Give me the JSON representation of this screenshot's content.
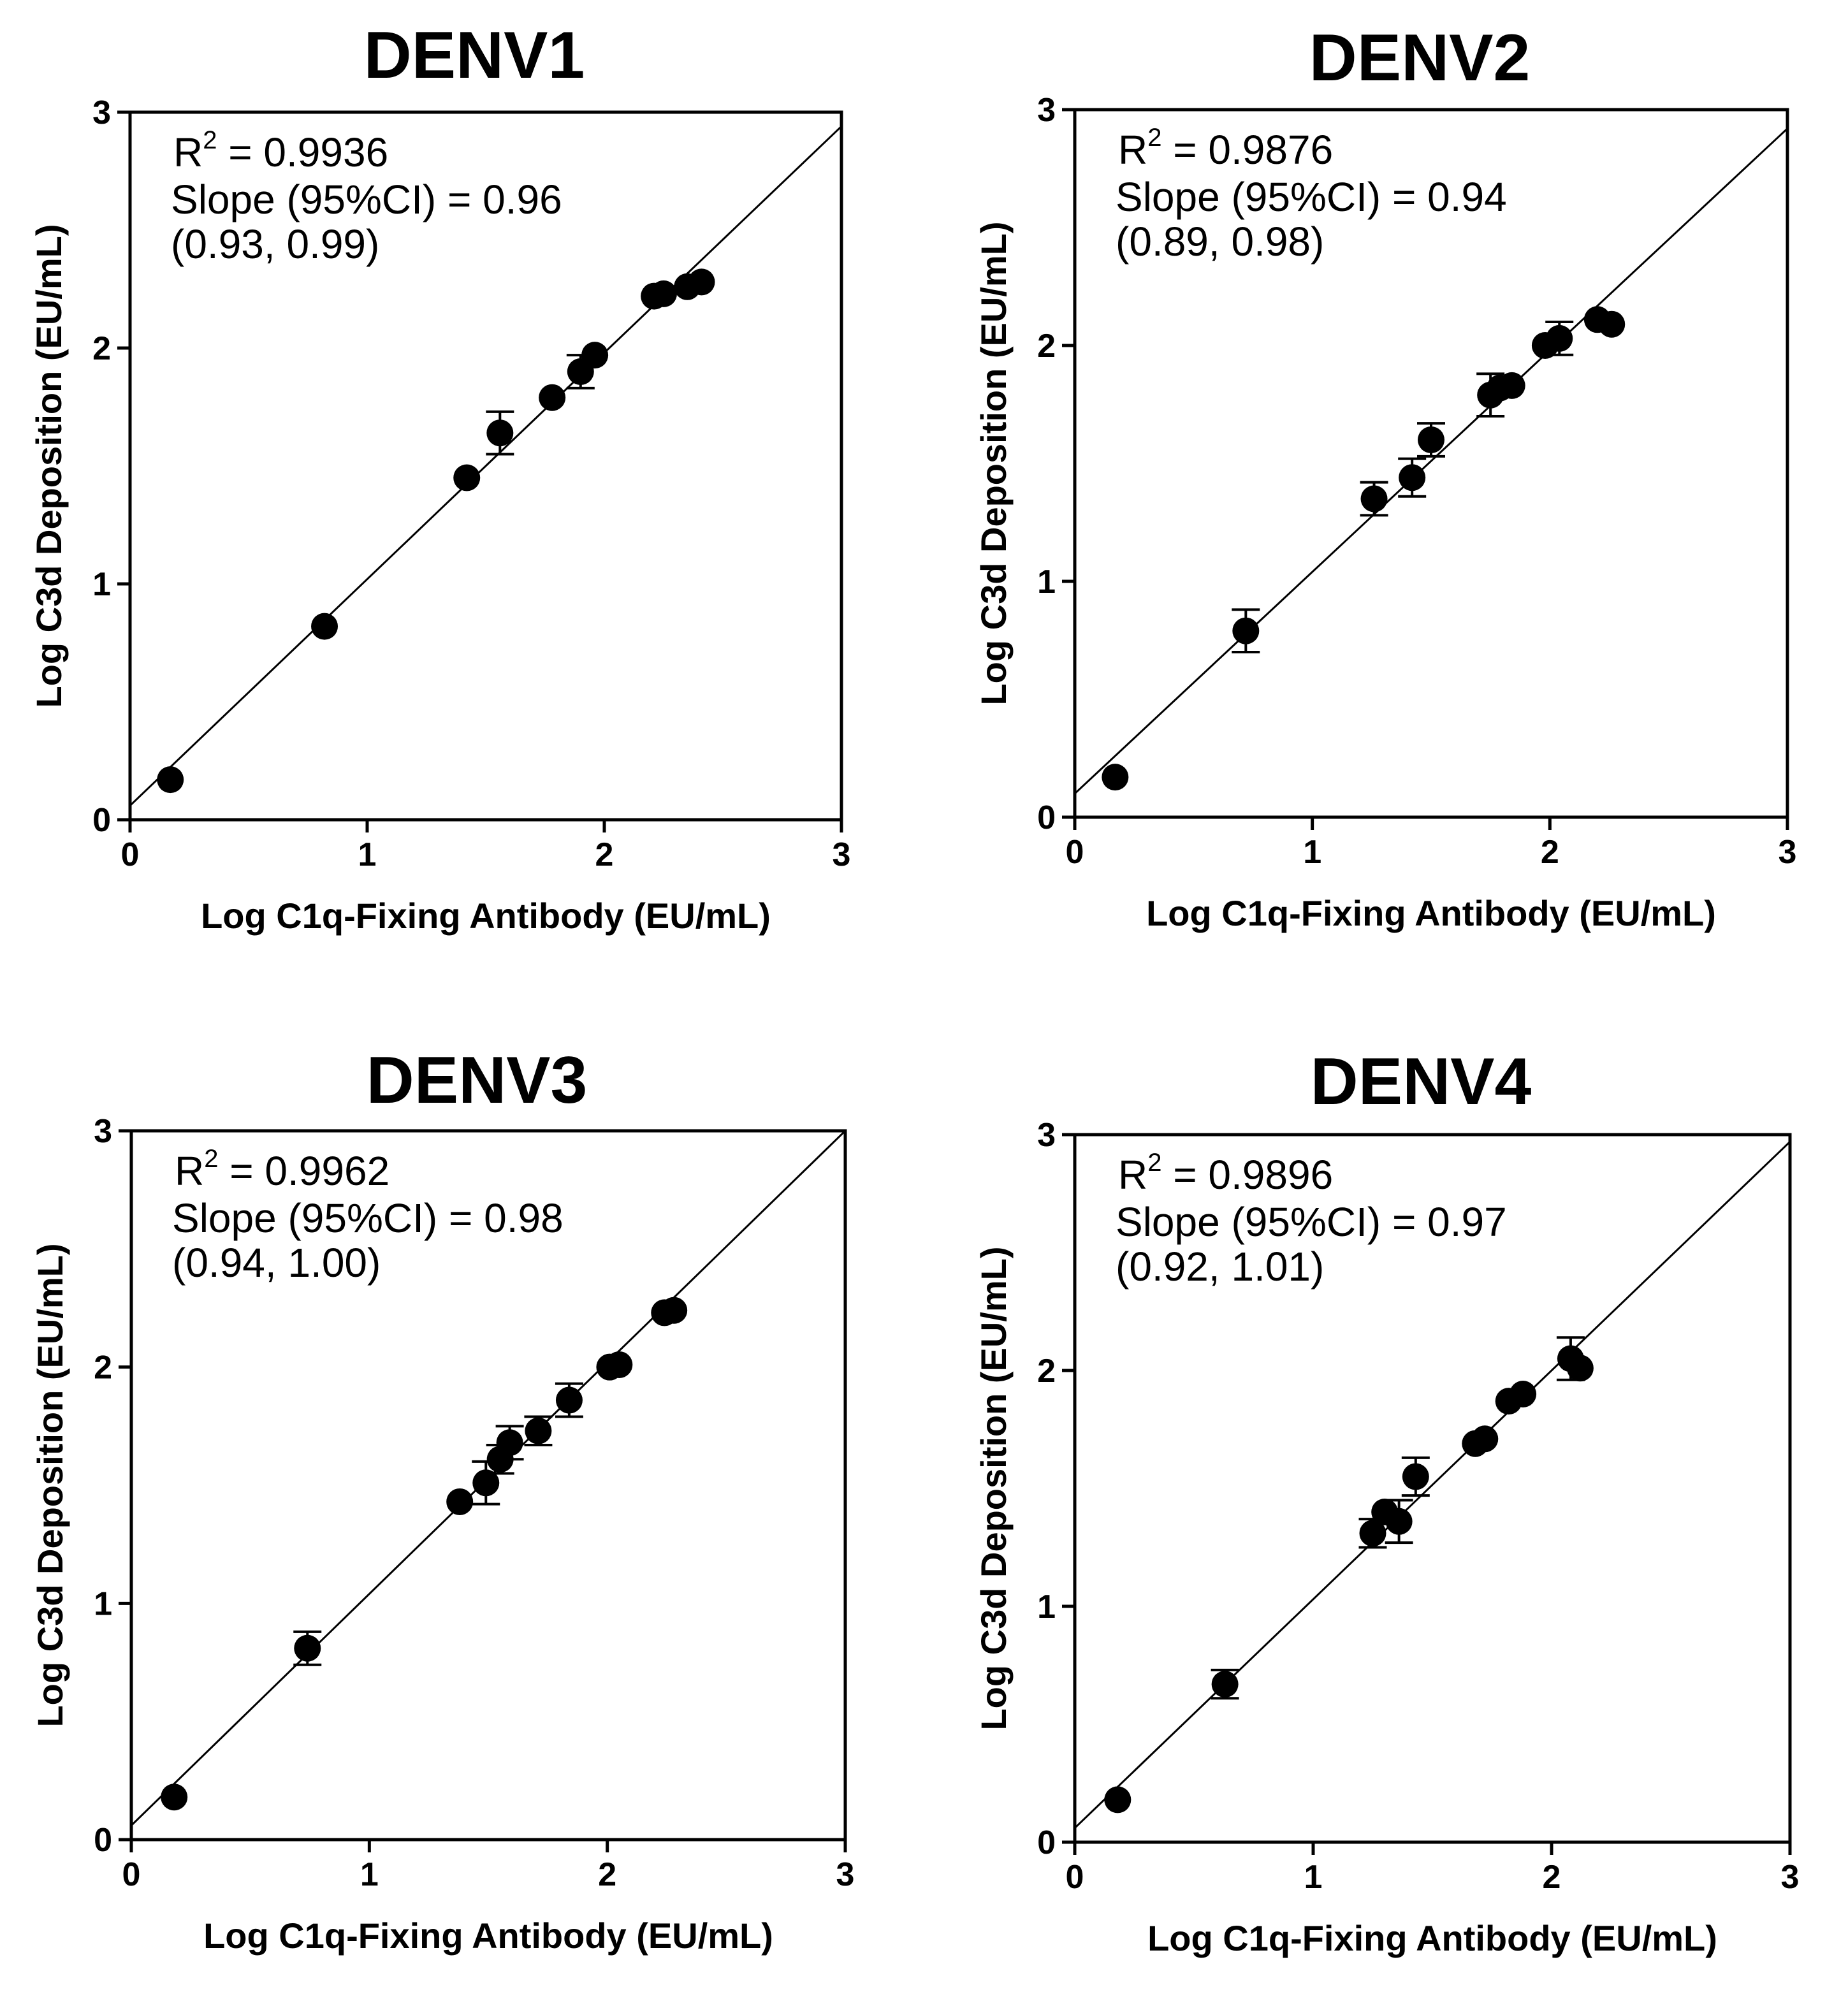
{
  "chart_data": [
    {
      "type": "scatter",
      "title": "DENV1",
      "xlabel": "Log C1q-Fixing Antibody (EU/mL)",
      "ylabel": "Log C3d Deposition (EU/mL)",
      "xlim": [
        0,
        3
      ],
      "ylim": [
        0,
        3
      ],
      "xticks": [
        "0",
        "1",
        "2",
        "3"
      ],
      "yticks": [
        "0",
        "1",
        "2",
        "3"
      ],
      "annotation": {
        "r2_label": "R",
        "r2_sup": "2",
        "r2_value": " = 0.9936",
        "slope": "Slope (95%CI) = 0.96",
        "ci": "(0.93, 0.99)"
      },
      "fit_line": {
        "slope": 0.96,
        "intercept": 0.06
      },
      "points": [
        {
          "x": 0.17,
          "y": 0.17,
          "err": 0
        },
        {
          "x": 0.82,
          "y": 0.82,
          "err": 0
        },
        {
          "x": 1.42,
          "y": 1.45,
          "err": 0
        },
        {
          "x": 1.56,
          "y": 1.64,
          "err": 0.09
        },
        {
          "x": 1.78,
          "y": 1.79,
          "err": 0
        },
        {
          "x": 1.9,
          "y": 1.9,
          "err": 0.07
        },
        {
          "x": 1.96,
          "y": 1.97,
          "err": 0
        },
        {
          "x": 2.21,
          "y": 2.22,
          "err": 0
        },
        {
          "x": 2.25,
          "y": 2.23,
          "err": 0
        },
        {
          "x": 2.35,
          "y": 2.26,
          "err": 0
        },
        {
          "x": 2.41,
          "y": 2.28,
          "err": 0
        }
      ]
    },
    {
      "type": "scatter",
      "title": "DENV2",
      "xlabel": "Log C1q-Fixing Antibody (EU/mL)",
      "ylabel": "Log C3d Deposition (EU/mL)",
      "xlim": [
        0,
        3
      ],
      "ylim": [
        0,
        3
      ],
      "xticks": [
        "0",
        "1",
        "2",
        "3"
      ],
      "yticks": [
        "0",
        "1",
        "2",
        "3"
      ],
      "annotation": {
        "r2_label": "R",
        "r2_sup": "2",
        "r2_value": " = 0.9876",
        "slope": "Slope (95%CI) = 0.94",
        "ci": "(0.89, 0.98)"
      },
      "fit_line": {
        "slope": 0.94,
        "intercept": 0.1
      },
      "points": [
        {
          "x": 0.17,
          "y": 0.17,
          "err": 0
        },
        {
          "x": 0.72,
          "y": 0.79,
          "err": 0.09
        },
        {
          "x": 1.26,
          "y": 1.35,
          "err": 0.07
        },
        {
          "x": 1.42,
          "y": 1.44,
          "err": 0.08
        },
        {
          "x": 1.5,
          "y": 1.6,
          "err": 0.07
        },
        {
          "x": 1.75,
          "y": 1.79,
          "err": 0.09
        },
        {
          "x": 1.79,
          "y": 1.82,
          "err": 0
        },
        {
          "x": 1.84,
          "y": 1.83,
          "err": 0
        },
        {
          "x": 1.98,
          "y": 2.0,
          "err": 0
        },
        {
          "x": 2.04,
          "y": 2.03,
          "err": 0.07
        },
        {
          "x": 2.2,
          "y": 2.11,
          "err": 0
        },
        {
          "x": 2.26,
          "y": 2.09,
          "err": 0
        }
      ]
    },
    {
      "type": "scatter",
      "title": "DENV3",
      "xlabel": "Log C1q-Fixing Antibody (EU/mL)",
      "ylabel": "Log C3d Deposition (EU/mL)",
      "xlim": [
        0,
        3
      ],
      "ylim": [
        0,
        3
      ],
      "xticks": [
        "0",
        "1",
        "2",
        "3"
      ],
      "yticks": [
        "0",
        "1",
        "2",
        "3"
      ],
      "annotation": {
        "r2_label": "R",
        "r2_sup": "2",
        "r2_value": " = 0.9962",
        "slope": "Slope (95%CI) = 0.98",
        "ci": "(0.94, 1.00)"
      },
      "fit_line": {
        "slope": 0.98,
        "intercept": 0.06
      },
      "points": [
        {
          "x": 0.18,
          "y": 0.18,
          "err": 0
        },
        {
          "x": 0.74,
          "y": 0.81,
          "err": 0.07
        },
        {
          "x": 1.38,
          "y": 1.43,
          "err": 0
        },
        {
          "x": 1.49,
          "y": 1.51,
          "err": 0.09
        },
        {
          "x": 1.55,
          "y": 1.61,
          "err": 0.06
        },
        {
          "x": 1.59,
          "y": 1.68,
          "err": 0.07
        },
        {
          "x": 1.71,
          "y": 1.73,
          "err": 0.06
        },
        {
          "x": 1.84,
          "y": 1.86,
          "err": 0.07
        },
        {
          "x": 2.01,
          "y": 2.0,
          "err": 0
        },
        {
          "x": 2.05,
          "y": 2.01,
          "err": 0
        },
        {
          "x": 2.24,
          "y": 2.23,
          "err": 0
        },
        {
          "x": 2.28,
          "y": 2.24,
          "err": 0
        }
      ]
    },
    {
      "type": "scatter",
      "title": "DENV4",
      "xlabel": "Log C1q-Fixing Antibody (EU/mL)",
      "ylabel": "Log C3d Deposition (EU/mL)",
      "xlim": [
        0,
        3
      ],
      "ylim": [
        0,
        3
      ],
      "xticks": [
        "0",
        "1",
        "2",
        "3"
      ],
      "yticks": [
        "0",
        "1",
        "2",
        "3"
      ],
      "annotation": {
        "r2_label": "R",
        "r2_sup": "2",
        "r2_value": " = 0.9896",
        "slope": "Slope (95%CI) = 0.97",
        "ci": "(0.92, 1.01)"
      },
      "fit_line": {
        "slope": 0.97,
        "intercept": 0.06
      },
      "points": [
        {
          "x": 0.18,
          "y": 0.18,
          "err": 0
        },
        {
          "x": 0.63,
          "y": 0.67,
          "err": 0.06
        },
        {
          "x": 1.25,
          "y": 1.31,
          "err": 0.06
        },
        {
          "x": 1.3,
          "y": 1.4,
          "err": 0
        },
        {
          "x": 1.36,
          "y": 1.36,
          "err": 0.09
        },
        {
          "x": 1.43,
          "y": 1.55,
          "err": 0.08
        },
        {
          "x": 1.68,
          "y": 1.69,
          "err": 0
        },
        {
          "x": 1.72,
          "y": 1.71,
          "err": 0
        },
        {
          "x": 1.82,
          "y": 1.87,
          "err": 0
        },
        {
          "x": 1.88,
          "y": 1.9,
          "err": 0
        },
        {
          "x": 2.08,
          "y": 2.05,
          "err": 0.09
        },
        {
          "x": 2.12,
          "y": 2.01,
          "err": 0
        }
      ]
    }
  ]
}
